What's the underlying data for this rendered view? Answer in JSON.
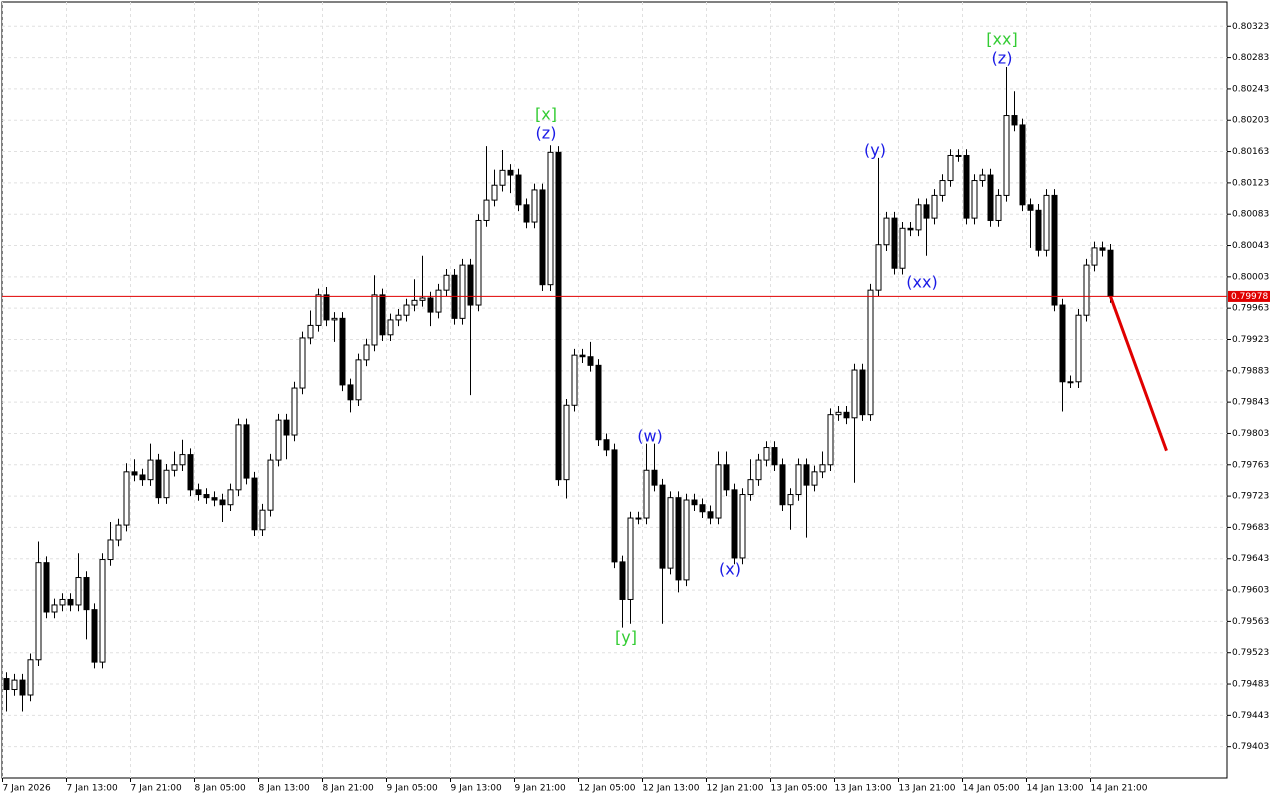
{
  "chart_data": {
    "type": "candlestick",
    "categories": [
      "7 Jan 2026",
      null,
      null,
      null,
      null,
      null,
      null,
      null,
      "7 Jan 13:00",
      null,
      null,
      null,
      null,
      null,
      null,
      null,
      "7 Jan 21:00",
      null,
      null,
      null,
      null,
      null,
      null,
      null,
      "8 Jan 05:00",
      null,
      null,
      null,
      null,
      null,
      null,
      null,
      "8 Jan 13:00",
      null,
      null,
      null,
      null,
      null,
      null,
      null,
      "8 Jan 21:00",
      null,
      null,
      null,
      null,
      null,
      null,
      null,
      "9 Jan 05:00",
      null,
      null,
      null,
      null,
      null,
      null,
      null,
      "9 Jan 13:00",
      null,
      null,
      null,
      null,
      null,
      null,
      null,
      "9 Jan 21:00",
      null,
      null,
      null,
      null,
      null,
      null,
      null,
      "12 Jan 05:00",
      null,
      null,
      null,
      null,
      null,
      null,
      null,
      "12 Jan 13:00",
      null,
      null,
      null,
      null,
      null,
      null,
      null,
      "12 Jan 21:00",
      null,
      null,
      null,
      null,
      null,
      null,
      null,
      "13 Jan 05:00",
      null,
      null,
      null,
      null,
      null,
      null,
      null,
      "13 Jan 13:00",
      null,
      null,
      null,
      null,
      null,
      null,
      null,
      "13 Jan 21:00",
      null,
      null,
      null,
      null,
      null,
      null,
      null,
      "14 Jan 05:00",
      null,
      null,
      null,
      null,
      null,
      null,
      null,
      "14 Jan 13:00",
      null,
      null,
      null,
      null,
      null,
      null,
      null,
      "14 Jan 21:00",
      null,
      null
    ],
    "open": [
      0.7949,
      0.79476,
      0.79488,
      0.79469,
      0.79514,
      0.79638,
      0.79575,
      0.79584,
      0.79591,
      0.79584,
      0.79619,
      0.79578,
      0.79511,
      0.79642,
      0.79667,
      0.79686,
      0.79754,
      0.7975,
      0.79744,
      0.79769,
      0.79721,
      0.79756,
      0.79763,
      0.79776,
      0.79731,
      0.79725,
      0.79721,
      0.79718,
      0.79712,
      0.79731,
      0.79814,
      0.79746,
      0.7968,
      0.79705,
      0.79769,
      0.7982,
      0.79801,
      0.79861,
      0.79925,
      0.79941,
      0.7998,
      0.79948,
      0.7995,
      0.79865,
      0.79846,
      0.79897,
      0.79916,
      0.7998,
      0.79929,
      0.79948,
      0.79954,
      0.79967,
      0.79973,
      0.79976,
      0.79958,
      0.79986,
      0.80005,
      0.7995,
      0.80018,
      0.79967,
      0.80075,
      0.80101,
      0.8012,
      0.80139,
      0.80133,
      0.80095,
      0.80073,
      0.80114,
      0.79993,
      0.80162,
      0.79744,
      0.79839,
      0.79903,
      0.79901,
      0.7989,
      0.79795,
      0.79782,
      0.79639,
      0.79591,
      0.79695,
      0.79695,
      0.79756,
      0.79737,
      0.79631,
      0.79721,
      0.79616,
      0.79718,
      0.79712,
      0.79703,
      0.79695,
      0.79763,
      0.79731,
      0.79644,
      0.79725,
      0.79744,
      0.79769,
      0.79785,
      0.79763,
      0.79712,
      0.79725,
      0.79763,
      0.79737,
      0.79754,
      0.79763,
      0.79827,
      0.7983,
      0.79823,
      0.79884,
      0.79827,
      0.79986,
      0.80044,
      0.80078,
      0.80014,
      0.80065,
      0.80063,
      0.80095,
      0.80078,
      0.80107,
      0.80126,
      0.80158,
      0.80158,
      0.80078,
      0.80126,
      0.80133,
      0.80075,
      0.80107,
      0.80209,
      0.80197,
      0.80095,
      0.80088,
      0.80037,
      0.80107,
      0.79967,
      0.79869,
      0.79869,
      0.79954,
      0.80018,
      0.8004,
      0.80037
    ],
    "high": [
      0.79498,
      0.79496,
      0.79496,
      0.79522,
      0.79665,
      0.79646,
      0.79592,
      0.79599,
      0.79599,
      0.7965,
      0.79627,
      0.79586,
      0.7965,
      0.7969,
      0.79694,
      0.79765,
      0.7977,
      0.79758,
      0.7979,
      0.79777,
      0.79764,
      0.7978,
      0.79795,
      0.79784,
      0.79739,
      0.79733,
      0.79729,
      0.79726,
      0.79739,
      0.79822,
      0.79822,
      0.79754,
      0.79713,
      0.79777,
      0.79828,
      0.79828,
      0.79869,
      0.79933,
      0.7996,
      0.79988,
      0.7999,
      0.79958,
      0.79958,
      0.79873,
      0.79905,
      0.79924,
      0.80005,
      0.79988,
      0.79956,
      0.79962,
      0.79975,
      0.8,
      0.8003,
      0.79984,
      0.79994,
      0.80013,
      0.80013,
      0.80026,
      0.80026,
      0.80083,
      0.8017,
      0.8014,
      0.80165,
      0.80147,
      0.80141,
      0.80103,
      0.80122,
      0.80122,
      0.80171,
      0.8017,
      0.79847,
      0.79911,
      0.79911,
      0.7992,
      0.79898,
      0.79803,
      0.7979,
      0.79647,
      0.79703,
      0.79703,
      0.7979,
      0.7979,
      0.79745,
      0.79729,
      0.79729,
      0.79726,
      0.79726,
      0.7972,
      0.79711,
      0.7978,
      0.7978,
      0.79739,
      0.79733,
      0.7977,
      0.79777,
      0.79793,
      0.79793,
      0.79771,
      0.79733,
      0.79771,
      0.79771,
      0.79762,
      0.7978,
      0.79835,
      0.79838,
      0.79838,
      0.79892,
      0.79892,
      0.79994,
      0.80155,
      0.80086,
      0.80086,
      0.80073,
      0.80073,
      0.80103,
      0.80103,
      0.80115,
      0.80134,
      0.80166,
      0.80166,
      0.80166,
      0.80134,
      0.80141,
      0.80141,
      0.80115,
      0.80271,
      0.8024,
      0.80205,
      0.80103,
      0.80096,
      0.80115,
      0.80115,
      0.79975,
      0.79877,
      0.79962,
      0.80026,
      0.80048,
      0.80048,
      0.80045
    ],
    "low": [
      0.79448,
      0.79468,
      0.79448,
      0.79461,
      0.79506,
      0.79567,
      0.79567,
      0.79576,
      0.79576,
      0.79576,
      0.7954,
      0.79503,
      0.79503,
      0.79634,
      0.79659,
      0.79678,
      0.79742,
      0.79736,
      0.79736,
      0.79713,
      0.79713,
      0.79748,
      0.79755,
      0.79723,
      0.79717,
      0.79713,
      0.7971,
      0.7969,
      0.79704,
      0.79723,
      0.79738,
      0.79672,
      0.79672,
      0.79697,
      0.79761,
      0.7977,
      0.79793,
      0.79853,
      0.79917,
      0.79933,
      0.7994,
      0.7992,
      0.79857,
      0.7983,
      0.79838,
      0.79889,
      0.79908,
      0.79921,
      0.79921,
      0.7994,
      0.79946,
      0.79959,
      0.79965,
      0.7994,
      0.7995,
      0.79978,
      0.79942,
      0.79942,
      0.79852,
      0.79959,
      0.80067,
      0.80093,
      0.80112,
      0.8011,
      0.80087,
      0.80065,
      0.80065,
      0.79985,
      0.79985,
      0.79736,
      0.7972,
      0.79831,
      0.79893,
      0.79882,
      0.79787,
      0.79774,
      0.79631,
      0.79555,
      0.7956,
      0.79687,
      0.79687,
      0.79729,
      0.7956,
      0.79623,
      0.796,
      0.79608,
      0.79704,
      0.79695,
      0.79687,
      0.79687,
      0.79723,
      0.79636,
      0.79636,
      0.79717,
      0.79736,
      0.79761,
      0.79755,
      0.79704,
      0.7968,
      0.79717,
      0.7967,
      0.79729,
      0.79746,
      0.79755,
      0.79819,
      0.79815,
      0.7974,
      0.79819,
      0.79819,
      0.79978,
      0.80036,
      0.80006,
      0.80006,
      0.80055,
      0.80055,
      0.8003,
      0.8007,
      0.80099,
      0.80118,
      0.8015,
      0.8007,
      0.8007,
      0.80118,
      0.80067,
      0.80067,
      0.80099,
      0.80189,
      0.80087,
      0.8004,
      0.80029,
      0.80029,
      0.79959,
      0.79831,
      0.79861,
      0.79861,
      0.79946,
      0.8001,
      0.80029,
      0.7997
    ],
    "close": [
      0.79476,
      0.79488,
      0.79469,
      0.79514,
      0.79638,
      0.79575,
      0.79584,
      0.79591,
      0.79584,
      0.79619,
      0.79578,
      0.79511,
      0.79642,
      0.79667,
      0.79686,
      0.79754,
      0.7975,
      0.79744,
      0.79769,
      0.79721,
      0.79756,
      0.79763,
      0.79776,
      0.79731,
      0.79725,
      0.79721,
      0.79718,
      0.79712,
      0.79731,
      0.79814,
      0.79746,
      0.7968,
      0.79705,
      0.79769,
      0.7982,
      0.79801,
      0.79861,
      0.79925,
      0.79941,
      0.7998,
      0.79948,
      0.7995,
      0.79865,
      0.79846,
      0.79897,
      0.79916,
      0.7998,
      0.79929,
      0.79948,
      0.79954,
      0.79967,
      0.79973,
      0.79976,
      0.79958,
      0.79986,
      0.80005,
      0.7995,
      0.80018,
      0.79967,
      0.80075,
      0.80101,
      0.8012,
      0.80139,
      0.80133,
      0.80095,
      0.80073,
      0.80114,
      0.79993,
      0.80162,
      0.79744,
      0.79839,
      0.79903,
      0.79901,
      0.7989,
      0.79795,
      0.79782,
      0.79639,
      0.79591,
      0.79695,
      0.79695,
      0.79756,
      0.79737,
      0.79631,
      0.79721,
      0.79616,
      0.79718,
      0.79712,
      0.79703,
      0.79695,
      0.79763,
      0.79731,
      0.79644,
      0.79725,
      0.79744,
      0.79769,
      0.79785,
      0.79763,
      0.79712,
      0.79725,
      0.79763,
      0.79737,
      0.79754,
      0.79763,
      0.79827,
      0.7983,
      0.79823,
      0.79884,
      0.79827,
      0.79986,
      0.80044,
      0.80078,
      0.80014,
      0.80065,
      0.80063,
      0.80095,
      0.80078,
      0.80107,
      0.80126,
      0.80158,
      0.80158,
      0.80078,
      0.80126,
      0.80133,
      0.80075,
      0.80107,
      0.80209,
      0.80197,
      0.80095,
      0.80088,
      0.80037,
      0.80107,
      0.79967,
      0.79869,
      0.79869,
      0.79954,
      0.80018,
      0.8004,
      0.80037,
      0.79978
    ],
    "up_color": "#ffffff",
    "down_color": "#000000",
    "ylim": [
      0.79363,
      0.80354
    ],
    "yticks": [
      0.79403,
      0.79443,
      0.79483,
      0.79523,
      0.79563,
      0.79603,
      0.79643,
      0.79683,
      0.79723,
      0.79763,
      0.79803,
      0.79843,
      0.79883,
      0.79923,
      0.79963,
      0.80003,
      0.80043,
      0.80083,
      0.80123,
      0.80163,
      0.80203,
      0.80243,
      0.80283,
      0.80323
    ],
    "grid": true,
    "current_price": {
      "value": 0.79978,
      "color": "#e00000"
    },
    "forecast": {
      "color": "#e00000",
      "values": [
        0.79978,
        0.79781
      ]
    },
    "annotations": [
      {
        "text": "[x]",
        "color": "#33cc33"
      },
      {
        "text": "(z)",
        "color": "#1a1ae6"
      },
      {
        "text": "[xx]",
        "color": "#33cc33"
      },
      {
        "text": "(z)",
        "color": "#1a1ae6"
      },
      {
        "text": "(y)",
        "color": "#1a1ae6"
      },
      {
        "text": "(xx)",
        "color": "#1a1ae6"
      },
      {
        "text": "(w)",
        "color": "#1a1ae6"
      },
      {
        "text": "(x)",
        "color": "#1a1ae6"
      },
      {
        "text": "[y]",
        "color": "#33cc33"
      }
    ]
  }
}
